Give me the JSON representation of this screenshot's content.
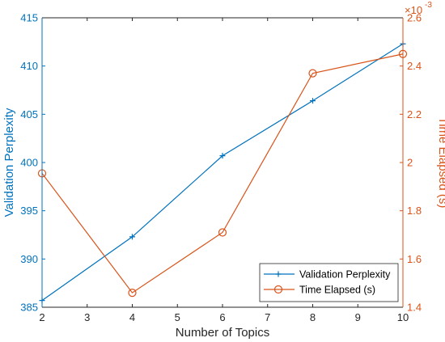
{
  "chart_data": {
    "type": "line",
    "xlabel": "Number of Topics",
    "ylabel_left": "Validation Perplexity",
    "ylabel_right": "Time Elapsed (s)",
    "right_axis_multiplier": "×10",
    "right_axis_exponent": "-3",
    "xlim": [
      2,
      10
    ],
    "ylim_left": [
      385,
      415
    ],
    "ylim_right": [
      1.4,
      2.6
    ],
    "x_ticks": [
      2,
      3,
      4,
      5,
      6,
      7,
      8,
      9,
      10
    ],
    "y_ticks_left": [
      385,
      390,
      395,
      400,
      405,
      410,
      415
    ],
    "y_ticks_right": [
      1.4,
      1.6,
      1.8,
      2,
      2.2,
      2.4,
      2.6
    ],
    "y_tick_labels_right": [
      "1.4",
      "1.6",
      "1.8",
      "2",
      "2.2",
      "2.4",
      "2.6"
    ],
    "legend_position": "bottom-right",
    "series": [
      {
        "name": "Validation Perplexity",
        "axis": "left",
        "marker": "plus",
        "color": "#0072BD",
        "x": [
          2,
          4,
          6,
          8,
          10
        ],
        "values": [
          385.7,
          392.3,
          400.7,
          406.4,
          412.3
        ]
      },
      {
        "name": "Time Elapsed (s)",
        "axis": "right",
        "marker": "circle",
        "color": "#D95319",
        "x": [
          2,
          4,
          6,
          8,
          10
        ],
        "values": [
          1.955,
          1.46,
          1.71,
          2.37,
          2.45
        ]
      }
    ]
  }
}
